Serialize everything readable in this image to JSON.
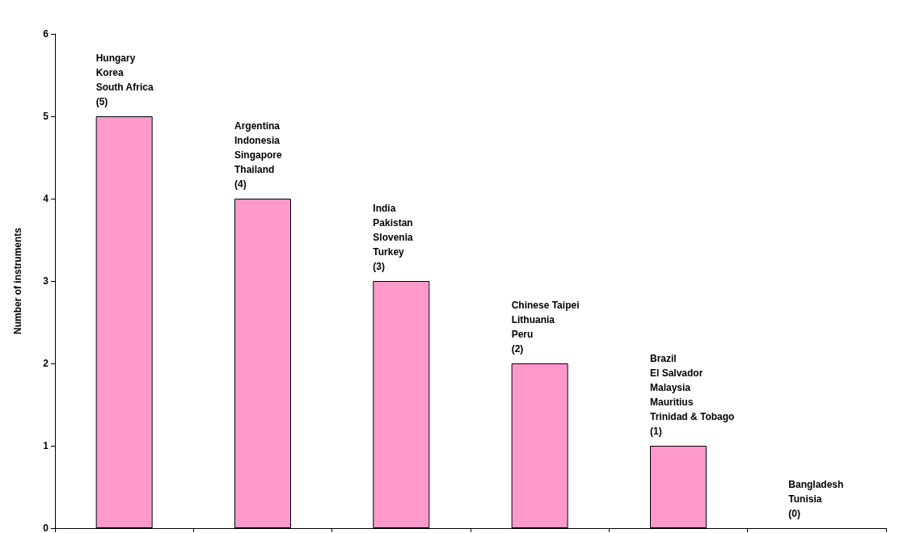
{
  "chart_data": {
    "type": "bar",
    "ylabel": "Number of instruments",
    "categories": [
      null,
      null,
      null,
      null,
      null,
      null
    ],
    "values": [
      5,
      4,
      3,
      2,
      1,
      0
    ],
    "value_labels": [
      "Hungary\nKorea\nSouth Africa\n(5)",
      "Argentina\nIndonesia\nSingapore\nThailand\n(4)",
      "India\nPakistan\nSlovenia\nTurkey\n(3)",
      "Chinese Taipei\nLithuania\nPeru\n(2)",
      "Brazil\nEl Salvador\nMalaysia\nMauritius\nTrinidad & Tobago\n(1)",
      "Bangladesh\nTunisia\n(0)"
    ],
    "color": "#ff99cc",
    "ylim": [
      0,
      6
    ],
    "yticks": [
      0,
      1,
      2,
      3,
      4,
      5,
      6
    ],
    "grid": false,
    "tick_labels": "y"
  }
}
